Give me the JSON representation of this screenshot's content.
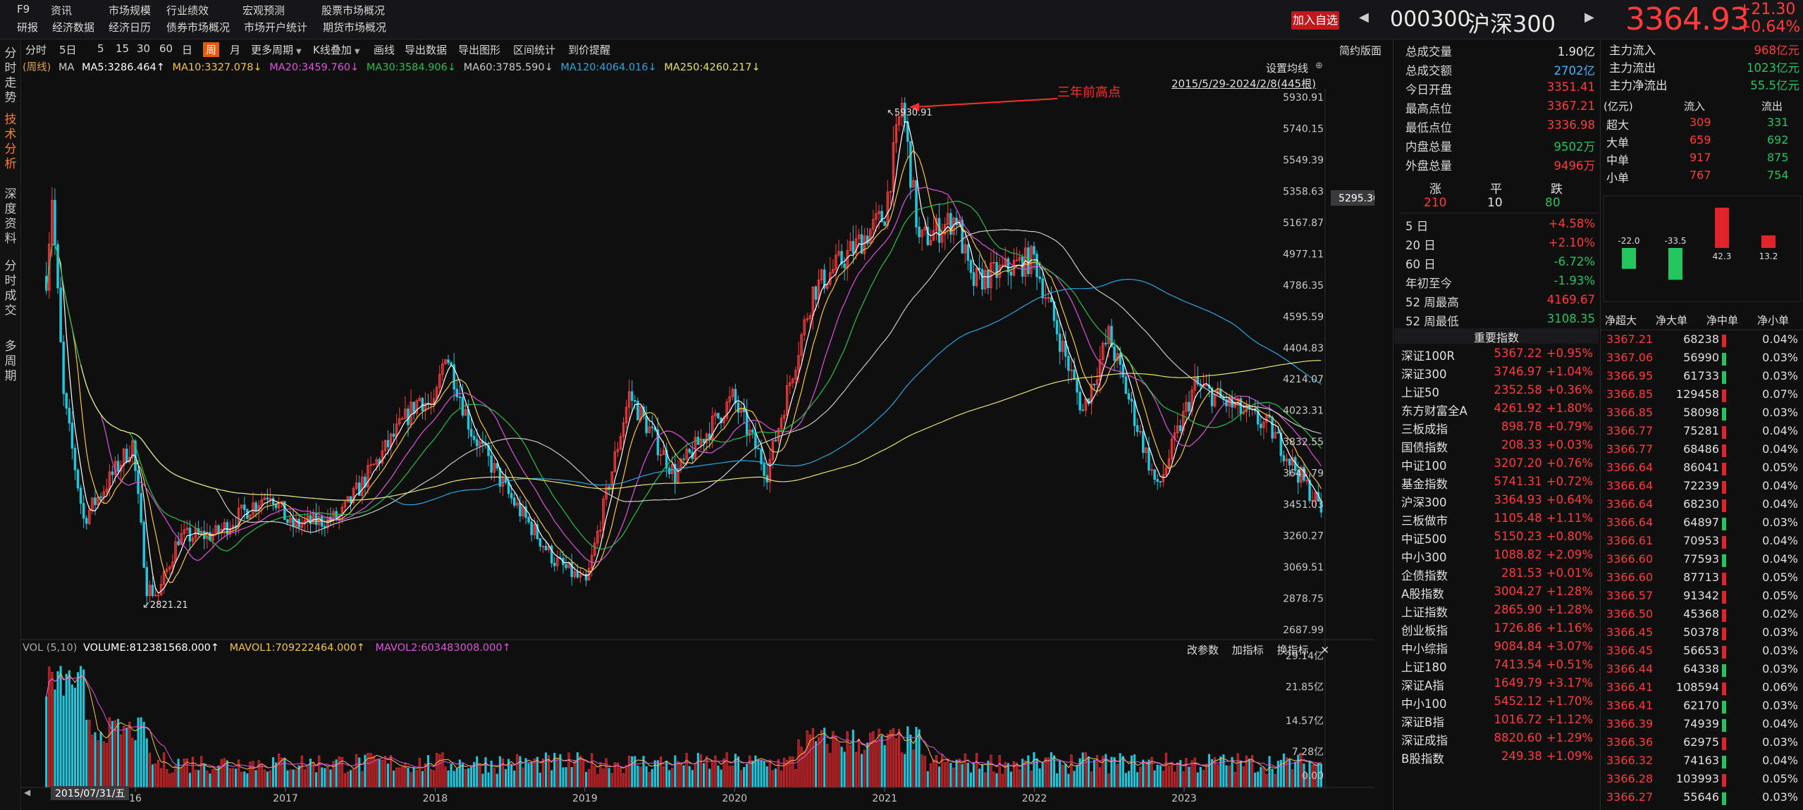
{
  "top_menu": {
    "row1": [
      "F9",
      "资讯",
      "市场规模",
      "行业绩效",
      "宏观预测",
      "股票市场概况"
    ],
    "row2": [
      "研报",
      "经济数据",
      "经济日历",
      "债券市场概况",
      "市场开户统计",
      "期货市场概况"
    ]
  },
  "header": {
    "add_watch": "加入自选",
    "code": "000300",
    "name": "沪深300",
    "price": "3364.93",
    "change": "+21.30",
    "change_pct": "+0.64%"
  },
  "left_tabs": [
    "分时走势",
    "技术分析",
    "深度资料",
    "分时成交",
    "多周期"
  ],
  "toolbar": {
    "items": [
      "分时",
      "5日",
      "5",
      "15",
      "30",
      "60",
      "日",
      "周",
      "月",
      "更多周期",
      "K线叠加",
      "画线",
      "导出数据",
      "导出图形",
      "区间统计",
      "到价提醒"
    ],
    "selected": "周",
    "simple_layout": "简约版面"
  },
  "ma_row": {
    "prefix": "(周线)",
    "ma_label": "MA",
    "ma5": "MA5:3286.464↑",
    "ma10": "MA10:3327.078↓",
    "ma20": "MA20:3459.760↓",
    "ma30": "MA30:3584.906↓",
    "ma60": "MA60:3785.590↓",
    "ma120": "MA120:4064.016↓",
    "ma250": "MA250:4260.217↓"
  },
  "chart_controls": {
    "set_ma": "设置均线",
    "range": "2015/5/29-2024/2/8(445根)",
    "annotation": "三年前高点",
    "cursor_price": "5295.30",
    "high_label": "5930.91",
    "low_label": "2821.21"
  },
  "vol_row": {
    "label": "VOL (5,10)",
    "volume": "VOLUME:812381568.000↑",
    "mavol1": "MAVOL1:709222464.000↑",
    "mavol2": "MAVOL2:603483008.000↑",
    "btns": [
      "改参数",
      "加指标",
      "换指标"
    ]
  },
  "date_label": "2015/07/31/五",
  "colors": {
    "up": "#ff3b3b",
    "down": "#22c5d9",
    "ma5": "#ffffff",
    "ma10": "#f5c542",
    "ma20": "#e052e0",
    "ma30": "#29c04a",
    "ma60": "#c9c9c9",
    "ma120": "#29a8e0",
    "ma250": "#e8e26a",
    "annotation": "#ff2d2d"
  },
  "chart_data": {
    "type": "candlestick",
    "title": "",
    "ylim": [
      2687.99,
      5930.91
    ],
    "y_ticks": [
      "5930.91",
      "5740.15",
      "5549.39",
      "5358.63",
      "5167.87",
      "4977.11",
      "4786.35",
      "4595.59",
      "4404.83",
      "4214.07",
      "4023.31",
      "3832.55",
      "3641.79",
      "3451.03",
      "3260.27",
      "3069.51",
      "2878.75",
      "2687.99"
    ],
    "x_ticks": [
      "16",
      "2017",
      "2018",
      "2019",
      "2020",
      "2021",
      "2022",
      "2023"
    ],
    "x_tick_dates": [
      "2016-01-01",
      "2017-01-01",
      "2018-01-01",
      "2019-01-01",
      "2020-01-01",
      "2021-01-01",
      "2022-01-01",
      "2023-01-01"
    ],
    "vol_ticks": [
      "29.14亿",
      "21.85亿",
      "14.57亿",
      "7.28亿",
      "0.00"
    ],
    "anchors": [
      {
        "d": "2015-05-29",
        "c": 4840
      },
      {
        "d": "2015-06-12",
        "c": 5335
      },
      {
        "d": "2015-07-10",
        "c": 4100
      },
      {
        "d": "2015-08-28",
        "c": 3360
      },
      {
        "d": "2015-12-25",
        "c": 3820
      },
      {
        "d": "2016-01-29",
        "c": 2946
      },
      {
        "d": "2016-02-26",
        "c": 2900
      },
      {
        "d": "2016-04-15",
        "c": 3250
      },
      {
        "d": "2016-07-15",
        "c": 3270
      },
      {
        "d": "2016-11-25",
        "c": 3530
      },
      {
        "d": "2017-01-13",
        "c": 3320
      },
      {
        "d": "2017-05-12",
        "c": 3370
      },
      {
        "d": "2017-11-24",
        "c": 4100
      },
      {
        "d": "2017-12-29",
        "c": 4030
      },
      {
        "d": "2018-01-26",
        "c": 4390
      },
      {
        "d": "2018-03-30",
        "c": 3900
      },
      {
        "d": "2018-06-29",
        "c": 3510
      },
      {
        "d": "2018-10-19",
        "c": 3110
      },
      {
        "d": "2019-01-04",
        "c": 2965
      },
      {
        "d": "2019-04-19",
        "c": 4120
      },
      {
        "d": "2019-08-09",
        "c": 3630
      },
      {
        "d": "2019-12-27",
        "c": 4100
      },
      {
        "d": "2020-03-20",
        "c": 3650
      },
      {
        "d": "2020-07-10",
        "c": 4750
      },
      {
        "d": "2020-12-31",
        "c": 5210
      },
      {
        "d": "2021-02-12",
        "c": 5900
      },
      {
        "d": "2021-03-26",
        "c": 5050
      },
      {
        "d": "2021-06-25",
        "c": 5200
      },
      {
        "d": "2021-07-30",
        "c": 4800
      },
      {
        "d": "2021-12-31",
        "c": 4950
      },
      {
        "d": "2022-04-29",
        "c": 4020
      },
      {
        "d": "2022-07-01",
        "c": 4480
      },
      {
        "d": "2022-10-28",
        "c": 3540
      },
      {
        "d": "2023-01-27",
        "c": 4180
      },
      {
        "d": "2023-07-28",
        "c": 3920
      },
      {
        "d": "2023-10-27",
        "c": 3560
      },
      {
        "d": "2024-02-02",
        "c": 3175
      },
      {
        "d": "2024-02-08",
        "c": 3365
      }
    ],
    "ma_lines": [
      "MA5",
      "MA10",
      "MA20",
      "MA30",
      "MA60",
      "MA120",
      "MA250"
    ],
    "series_last": {
      "MA5": 3286.464,
      "MA10": 3327.078,
      "MA20": 3459.76,
      "MA30": 3584.906,
      "MA60": 3785.59,
      "MA120": 4064.016,
      "MA250": 4260.217
    },
    "legend": "top-left",
    "grid": false
  },
  "quote": {
    "rows": [
      {
        "label": "总成交量",
        "value": "1.90亿",
        "color": "white"
      },
      {
        "label": "总成交额",
        "value": "2702亿",
        "color": "cyan"
      },
      {
        "label": "今日开盘",
        "value": "3351.41",
        "color": "red"
      },
      {
        "label": "最高点位",
        "value": "3367.21",
        "color": "red"
      },
      {
        "label": "最低点位",
        "value": "3336.98",
        "color": "red"
      },
      {
        "label": "内盘总量",
        "value": "9502万",
        "color": "green"
      },
      {
        "label": "外盘总量",
        "value": "9496万",
        "color": "red"
      }
    ],
    "breadth": {
      "up_label": "涨",
      "flat_label": "平",
      "down_label": "跌",
      "up": "210",
      "flat": "10",
      "down": "80"
    },
    "perf": [
      {
        "label": "5 日",
        "value": "+4.58%",
        "color": "red"
      },
      {
        "label": "20 日",
        "value": "+2.10%",
        "color": "red"
      },
      {
        "label": "60 日",
        "value": "-6.72%",
        "color": "green"
      },
      {
        "label": "年初至今",
        "value": "-1.93%",
        "color": "green"
      },
      {
        "label": "52 周最高",
        "value": "4169.67",
        "color": "red"
      },
      {
        "label": "52 周最低",
        "value": "3108.35",
        "color": "green"
      }
    ]
  },
  "indices": {
    "title": "重要指数",
    "rows": [
      [
        "深证100R",
        "5367.22",
        "+0.95%"
      ],
      [
        "深证300",
        "3746.97",
        "+1.04%"
      ],
      [
        "上证50",
        "2352.58",
        "+0.36%"
      ],
      [
        "东方财富全A",
        "4261.92",
        "+1.80%"
      ],
      [
        "三板成指",
        "898.78",
        "+0.79%"
      ],
      [
        "国债指数",
        "208.33",
        "+0.03%"
      ],
      [
        "中证100",
        "3207.20",
        "+0.76%"
      ],
      [
        "基金指数",
        "5741.31",
        "+0.72%"
      ],
      [
        "沪深300",
        "3364.93",
        "+0.64%"
      ],
      [
        "三板做市",
        "1105.48",
        "+1.11%"
      ],
      [
        "中证500",
        "5150.23",
        "+0.80%"
      ],
      [
        "中小300",
        "1088.82",
        "+2.09%"
      ],
      [
        "企债指数",
        "281.53",
        "+0.01%"
      ],
      [
        "A股指数",
        "3004.27",
        "+1.28%"
      ],
      [
        "上证指数",
        "2865.90",
        "+1.28%"
      ],
      [
        "创业板指",
        "1726.86",
        "+1.16%"
      ],
      [
        "中小综指",
        "9084.84",
        "+3.07%"
      ],
      [
        "上证180",
        "7413.54",
        "+0.51%"
      ],
      [
        "深证A指",
        "1649.79",
        "+3.17%"
      ],
      [
        "中小100",
        "5452.12",
        "+1.70%"
      ],
      [
        "深证B指",
        "1016.72",
        "+1.12%"
      ],
      [
        "深证成指",
        "8820.60",
        "+1.29%"
      ],
      [
        "B股指数",
        "249.38",
        "+1.09%"
      ]
    ]
  },
  "flow": {
    "summary": [
      {
        "label": "主力流入",
        "value": "968亿元",
        "color": "red"
      },
      {
        "label": "主力流出",
        "value": "1023亿元",
        "color": "green"
      },
      {
        "label": "主力净流出",
        "value": "55.5亿元",
        "color": "green"
      }
    ],
    "table_head": [
      "(亿元)",
      "流入",
      "流出"
    ],
    "table": [
      [
        "超大",
        "309",
        "331"
      ],
      [
        "大单",
        "659",
        "692"
      ],
      [
        "中单",
        "917",
        "875"
      ],
      [
        "小单",
        "767",
        "754"
      ]
    ],
    "bars": {
      "values": [
        -22.0,
        -33.5,
        42.3,
        13.2
      ],
      "labels": [
        "-22.0",
        "-33.5",
        "42.3",
        "13.2"
      ],
      "cats": [
        "净超大",
        "净大单",
        "净中单",
        "净小单"
      ]
    },
    "ticks": [
      [
        "3367.21",
        "68238",
        "0.04%",
        "r"
      ],
      [
        "3367.06",
        "56990",
        "0.03%",
        "g"
      ],
      [
        "3366.95",
        "61733",
        "0.03%",
        "g"
      ],
      [
        "3366.85",
        "129458",
        "0.07%",
        "r"
      ],
      [
        "3366.85",
        "58098",
        "0.03%",
        "g"
      ],
      [
        "3366.77",
        "75281",
        "0.04%",
        "r"
      ],
      [
        "3366.77",
        "68486",
        "0.04%",
        "r"
      ],
      [
        "3366.64",
        "86041",
        "0.05%",
        "r"
      ],
      [
        "3366.64",
        "72239",
        "0.04%",
        "r"
      ],
      [
        "3366.64",
        "68230",
        "0.04%",
        "r"
      ],
      [
        "3366.64",
        "64897",
        "0.03%",
        "g"
      ],
      [
        "3366.61",
        "70953",
        "0.04%",
        "r"
      ],
      [
        "3366.60",
        "77593",
        "0.04%",
        "g"
      ],
      [
        "3366.60",
        "87713",
        "0.05%",
        "r"
      ],
      [
        "3366.57",
        "91342",
        "0.05%",
        "r"
      ],
      [
        "3366.50",
        "45368",
        "0.02%",
        "r"
      ],
      [
        "3366.45",
        "50378",
        "0.03%",
        "r"
      ],
      [
        "3366.45",
        "56653",
        "0.03%",
        "r"
      ],
      [
        "3366.44",
        "64338",
        "0.03%",
        "g"
      ],
      [
        "3366.41",
        "108594",
        "0.06%",
        "r"
      ],
      [
        "3366.41",
        "62170",
        "0.03%",
        "g"
      ],
      [
        "3366.39",
        "74939",
        "0.04%",
        "g"
      ],
      [
        "3366.36",
        "62975",
        "0.03%",
        "r"
      ],
      [
        "3366.32",
        "74163",
        "0.04%",
        "g"
      ],
      [
        "3366.28",
        "103993",
        "0.05%",
        "r"
      ],
      [
        "3366.27",
        "55646",
        "0.03%",
        "g"
      ]
    ]
  }
}
